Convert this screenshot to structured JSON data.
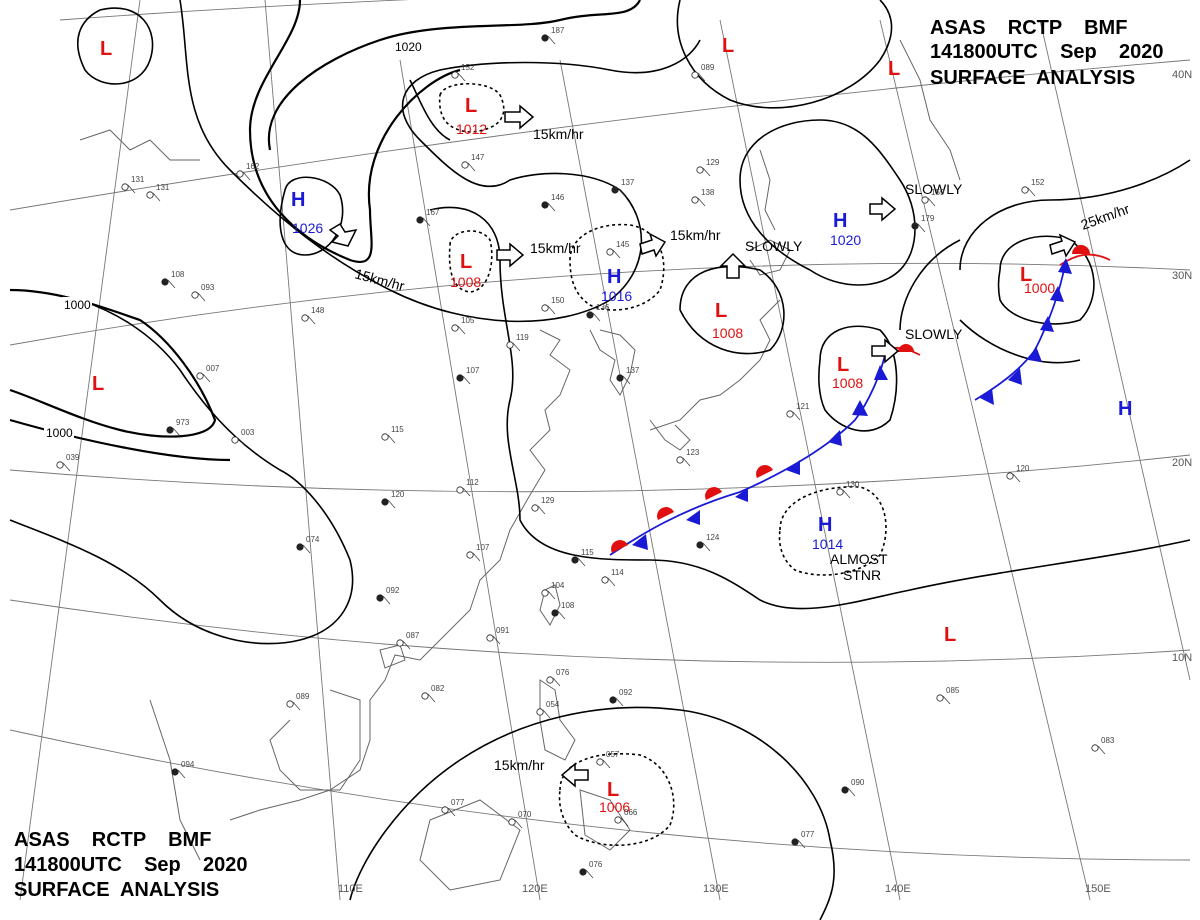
{
  "header_top": {
    "line1": "ASAS    RCTP    BMF",
    "line2": "141800UTC    Sep    2020",
    "line3": "SURFACE  ANALYSIS"
  },
  "header_bottom": {
    "line1": "ASAS    RCTP    BMF",
    "line2": "141800UTC    Sep    2020",
    "line3": "SURFACE  ANALYSIS"
  },
  "lat_labels": [
    "40N",
    "30N",
    "20N",
    "10N"
  ],
  "lon_labels": [
    "110E",
    "120E",
    "130E",
    "140E",
    "150E"
  ],
  "isobar_labels": [
    "1020",
    "1000",
    "1000"
  ],
  "systems": [
    {
      "kind": "L",
      "label": "L",
      "pressure": ""
    },
    {
      "kind": "L",
      "label": "L",
      "pressure": "1012"
    },
    {
      "kind": "H",
      "label": "H",
      "pressure": "1026"
    },
    {
      "kind": "L",
      "label": "L",
      "pressure": "1008"
    },
    {
      "kind": "H",
      "label": "H",
      "pressure": "1016"
    },
    {
      "kind": "L",
      "label": "L",
      "pressure": "1008"
    },
    {
      "kind": "H",
      "label": "H",
      "pressure": "1020"
    },
    {
      "kind": "L",
      "label": "L",
      "pressure": "1000"
    },
    {
      "kind": "L",
      "label": "L",
      "pressure": "1008"
    },
    {
      "kind": "L",
      "label": "L",
      "pressure": ""
    },
    {
      "kind": "L",
      "label": "L",
      "pressure": ""
    },
    {
      "kind": "L",
      "label": "L",
      "pressure": ""
    },
    {
      "kind": "H",
      "label": "H",
      "pressure": "1014"
    },
    {
      "kind": "L",
      "label": "L",
      "pressure": ""
    },
    {
      "kind": "H",
      "label": "H",
      "pressure": ""
    },
    {
      "kind": "L",
      "label": "L",
      "pressure": "1006"
    }
  ],
  "movements": [
    "15km/hr",
    "15km/hr",
    "15km/hr",
    "15km/hr",
    "SLOWLY",
    "SLOWLY",
    "SLOWLY",
    "25km/hr",
    "ALMOST",
    "STNR",
    "15km/hr"
  ],
  "stations": [
    "167",
    "152",
    "147",
    "146",
    "145",
    "138",
    "137",
    "129",
    "150",
    "136",
    "119",
    "115",
    "107",
    "105",
    "112",
    "120",
    "129",
    "107",
    "115",
    "114",
    "104",
    "108",
    "091",
    "087",
    "092",
    "082",
    "089",
    "094",
    "077",
    "070",
    "076",
    "076",
    "054",
    "092",
    "057",
    "066",
    "090",
    "083",
    "085",
    "077",
    "120",
    "130",
    "124",
    "123",
    "121",
    "137",
    "148",
    "131",
    "108",
    "093",
    "007",
    "973",
    "003",
    "039",
    "074",
    "162",
    "131",
    "187",
    "089",
    "159",
    "179",
    "152"
  ],
  "colors": {
    "high": "#1a1ad6",
    "low": "#e01010",
    "warm_front": "#e01010",
    "cold_front": "#1a1ad6",
    "isobar": "#000000",
    "coast": "#666666",
    "grid": "#777777"
  }
}
